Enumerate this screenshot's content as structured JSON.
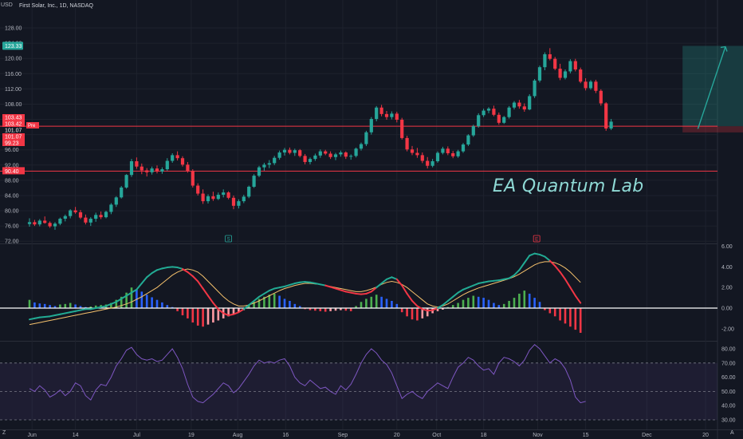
{
  "header": {
    "currency": "USD",
    "symbol_line": "First Solar, Inc., 1D, NASDAQ"
  },
  "watermark": "EA Quantum Lab",
  "price_panel": {
    "y_ticks": [
      "128.00",
      "124.00",
      "120.00",
      "116.00",
      "112.00",
      "108.00",
      "104.00",
      "100.00",
      "96.00",
      "92.00",
      "88.00",
      "84.00",
      "80.00",
      "76.00",
      "72.00"
    ],
    "current_price_label": "123.33",
    "label_stack": [
      "103.43",
      "103.42",
      "101.07",
      "101.07",
      "99.23"
    ],
    "pre_tag": "Pre",
    "support_label": "90.40",
    "horizontal_lines": [
      102.2,
      90.4
    ],
    "projection_box": {
      "x_from": 128,
      "x_to": 150,
      "top": 123.3,
      "bottom": 101.2,
      "mid": 102.2
    },
    "candles_ohlc": [
      [
        76.5,
        78.0,
        75.8,
        77.0
      ],
      [
        77.0,
        77.6,
        76.0,
        76.4
      ],
      [
        76.4,
        77.8,
        75.9,
        77.4
      ],
      [
        77.4,
        78.5,
        76.6,
        76.8
      ],
      [
        76.8,
        77.2,
        75.5,
        75.9
      ],
      [
        75.9,
        77.0,
        75.0,
        76.6
      ],
      [
        76.6,
        78.2,
        76.2,
        77.9
      ],
      [
        77.9,
        79.0,
        77.2,
        78.6
      ],
      [
        78.6,
        80.4,
        78.0,
        80.1
      ],
      [
        80.1,
        81.0,
        79.2,
        79.6
      ],
      [
        79.6,
        80.2,
        77.8,
        78.2
      ],
      [
        78.2,
        79.0,
        76.4,
        76.9
      ],
      [
        76.9,
        78.3,
        76.0,
        77.9
      ],
      [
        77.9,
        79.5,
        77.1,
        78.9
      ],
      [
        78.9,
        79.8,
        77.8,
        78.3
      ],
      [
        78.3,
        80.0,
        78.0,
        79.7
      ],
      [
        79.7,
        82.0,
        79.1,
        81.6
      ],
      [
        81.6,
        83.8,
        81.0,
        83.5
      ],
      [
        83.5,
        86.5,
        83.2,
        86.1
      ],
      [
        86.1,
        89.6,
        85.8,
        89.4
      ],
      [
        89.4,
        93.6,
        88.9,
        93.0
      ],
      [
        93.0,
        94.0,
        91.0,
        91.6
      ],
      [
        91.6,
        92.4,
        89.6,
        90.6
      ],
      [
        90.6,
        91.2,
        89.0,
        90.1
      ],
      [
        90.1,
        91.6,
        89.5,
        91.1
      ],
      [
        91.1,
        91.9,
        89.8,
        90.3
      ],
      [
        90.3,
        91.4,
        89.7,
        90.9
      ],
      [
        90.9,
        93.8,
        90.5,
        93.1
      ],
      [
        93.1,
        95.1,
        92.6,
        94.6
      ],
      [
        94.6,
        95.6,
        93.2,
        93.8
      ],
      [
        93.8,
        94.3,
        91.6,
        92.1
      ],
      [
        92.1,
        92.8,
        90.0,
        90.4
      ],
      [
        90.4,
        90.9,
        86.1,
        86.6
      ],
      [
        86.6,
        87.2,
        84.0,
        84.5
      ],
      [
        84.5,
        85.6,
        81.8,
        82.5
      ],
      [
        82.5,
        84.3,
        81.9,
        83.8
      ],
      [
        83.8,
        85.0,
        82.6,
        83.1
      ],
      [
        83.1,
        84.8,
        82.8,
        84.2
      ],
      [
        84.2,
        85.6,
        83.5,
        84.8
      ],
      [
        84.8,
        85.1,
        83.0,
        83.4
      ],
      [
        83.4,
        84.0,
        80.4,
        81.3
      ],
      [
        81.3,
        83.0,
        80.6,
        82.5
      ],
      [
        82.5,
        84.2,
        82.0,
        83.7
      ],
      [
        83.7,
        86.6,
        83.3,
        86.3
      ],
      [
        86.3,
        89.6,
        86.0,
        89.2
      ],
      [
        89.2,
        91.8,
        88.8,
        91.4
      ],
      [
        91.4,
        92.6,
        90.5,
        92.1
      ],
      [
        92.1,
        93.3,
        91.2,
        92.5
      ],
      [
        92.5,
        94.4,
        92.0,
        93.9
      ],
      [
        93.9,
        95.8,
        93.4,
        95.3
      ],
      [
        95.3,
        96.5,
        94.5,
        96.0
      ],
      [
        96.0,
        96.6,
        94.8,
        95.2
      ],
      [
        95.2,
        96.3,
        94.4,
        95.9
      ],
      [
        95.9,
        96.2,
        94.0,
        94.4
      ],
      [
        94.4,
        94.9,
        92.2,
        92.8
      ],
      [
        92.8,
        94.0,
        92.2,
        93.6
      ],
      [
        93.6,
        95.0,
        93.1,
        94.5
      ],
      [
        94.5,
        96.1,
        93.9,
        95.6
      ],
      [
        95.6,
        96.0,
        94.6,
        95.0
      ],
      [
        95.0,
        95.6,
        93.6,
        94.1
      ],
      [
        94.1,
        95.2,
        93.3,
        94.8
      ],
      [
        94.8,
        95.8,
        94.2,
        95.3
      ],
      [
        95.3,
        95.6,
        93.6,
        94.2
      ],
      [
        94.2,
        94.8,
        93.4,
        94.4
      ],
      [
        94.4,
        96.6,
        94.0,
        96.3
      ],
      [
        96.3,
        97.9,
        95.8,
        97.5
      ],
      [
        97.5,
        101.0,
        97.0,
        100.6
      ],
      [
        100.6,
        104.6,
        100.0,
        104.1
      ],
      [
        104.1,
        107.5,
        103.5,
        107.1
      ],
      [
        107.1,
        107.8,
        104.8,
        105.4
      ],
      [
        105.4,
        106.2,
        103.9,
        104.6
      ],
      [
        104.6,
        106.1,
        104.0,
        105.5
      ],
      [
        105.5,
        106.0,
        103.2,
        103.9
      ],
      [
        103.9,
        104.4,
        98.7,
        99.1
      ],
      [
        99.1,
        99.7,
        95.6,
        96.1
      ],
      [
        96.1,
        97.0,
        94.6,
        95.2
      ],
      [
        95.2,
        96.5,
        93.9,
        94.6
      ],
      [
        94.6,
        95.3,
        92.5,
        93.1
      ],
      [
        93.1,
        94.1,
        91.1,
        91.8
      ],
      [
        91.8,
        93.6,
        91.4,
        93.0
      ],
      [
        93.0,
        95.6,
        92.6,
        95.2
      ],
      [
        95.2,
        96.8,
        94.8,
        96.3
      ],
      [
        96.3,
        96.9,
        94.6,
        95.1
      ],
      [
        95.1,
        95.7,
        93.8,
        94.3
      ],
      [
        94.3,
        96.0,
        93.9,
        95.6
      ],
      [
        95.6,
        97.8,
        95.2,
        97.4
      ],
      [
        97.4,
        100.1,
        97.0,
        99.8
      ],
      [
        99.8,
        102.6,
        99.4,
        102.2
      ],
      [
        102.2,
        105.6,
        101.8,
        105.1
      ],
      [
        105.1,
        106.8,
        104.6,
        106.3
      ],
      [
        106.3,
        107.2,
        105.6,
        106.8
      ],
      [
        106.8,
        107.6,
        104.8,
        105.2
      ],
      [
        105.2,
        105.8,
        102.6,
        103.1
      ],
      [
        103.1,
        104.9,
        102.8,
        104.6
      ],
      [
        104.6,
        107.5,
        104.2,
        107.1
      ],
      [
        107.1,
        108.8,
        106.6,
        108.4
      ],
      [
        108.4,
        109.1,
        106.8,
        107.4
      ],
      [
        107.4,
        108.2,
        106.0,
        106.6
      ],
      [
        106.6,
        110.6,
        106.4,
        110.1
      ],
      [
        110.1,
        114.6,
        109.6,
        114.2
      ],
      [
        114.2,
        118.1,
        113.7,
        117.7
      ],
      [
        117.7,
        121.6,
        116.9,
        121.1
      ],
      [
        121.1,
        122.7,
        119.5,
        119.9
      ],
      [
        119.9,
        120.4,
        116.9,
        117.3
      ],
      [
        117.3,
        118.6,
        114.3,
        114.9
      ],
      [
        114.9,
        117.1,
        114.5,
        116.6
      ],
      [
        116.6,
        119.8,
        116.1,
        119.3
      ],
      [
        119.3,
        119.9,
        116.6,
        117.1
      ],
      [
        117.1,
        117.6,
        113.5,
        113.9
      ],
      [
        113.9,
        114.8,
        111.6,
        112.2
      ],
      [
        112.2,
        114.3,
        111.8,
        113.9
      ],
      [
        113.9,
        114.4,
        110.9,
        111.5
      ],
      [
        111.5,
        111.9,
        107.6,
        108.2
      ],
      [
        108.2,
        108.5,
        101.0,
        101.6
      ],
      [
        101.6,
        104.1,
        101.2,
        103.4
      ]
    ]
  },
  "x_axis": {
    "ticks": [
      {
        "label": "Jun",
        "i": 0.5
      },
      {
        "label": "14",
        "i": 9
      },
      {
        "label": "Jul",
        "i": 21
      },
      {
        "label": "19",
        "i": 31.7
      },
      {
        "label": "Aug",
        "i": 40.8
      },
      {
        "label": "16",
        "i": 50.2
      },
      {
        "label": "Sep",
        "i": 61.4
      },
      {
        "label": "20",
        "i": 72
      },
      {
        "label": "Oct",
        "i": 79.8
      },
      {
        "label": "18",
        "i": 89
      },
      {
        "label": "Nov",
        "i": 99.6
      },
      {
        "label": "15",
        "i": 109
      },
      {
        "label": "Dec",
        "i": 121
      },
      {
        "label": "20",
        "i": 132.5
      },
      {
        "label": "20",
        "i": 143.5
      }
    ]
  },
  "event_markers": [
    {
      "label": "S",
      "i": 39,
      "color": "#26a69a"
    },
    {
      "label": "E",
      "i": 99.4,
      "color": "#f23645"
    }
  ],
  "macd_panel": {
    "y_ticks": [
      "6.00",
      "4.00",
      "2.00",
      "0.00",
      "-2.00"
    ],
    "colors": {
      "hist_up": "#4caf50",
      "hist_up_light": "#26a69a",
      "hist_down": "#f23645",
      "hist_blue": "#2962ff",
      "macd_up": "#22ab94",
      "macd_down": "#f23645",
      "signal": "#f5c16c",
      "zero": "#ffffff"
    },
    "histogram": [
      0.8,
      0.55,
      0.45,
      0.4,
      0.3,
      0.2,
      0.35,
      0.4,
      0.5,
      0.35,
      0.2,
      0.1,
      0.15,
      0.25,
      0.3,
      0.35,
      0.5,
      0.8,
      1.1,
      1.5,
      2.0,
      1.8,
      1.6,
      1.3,
      1.05,
      0.8,
      0.55,
      0.3,
      0.1,
      -0.3,
      -0.7,
      -1.0,
      -1.4,
      -1.7,
      -1.8,
      -1.6,
      -1.4,
      -1.2,
      -1.0,
      -0.8,
      -0.6,
      -0.4,
      -0.2,
      0.3,
      0.6,
      0.9,
      1.1,
      1.3,
      1.4,
      1.2,
      0.9,
      0.7,
      0.4,
      0.2,
      -0.1,
      -0.2,
      -0.25,
      -0.3,
      -0.35,
      -0.3,
      -0.25,
      -0.2,
      -0.25,
      -0.3,
      0.2,
      0.6,
      0.9,
      1.1,
      1.3,
      1.1,
      0.9,
      0.7,
      0.4,
      -0.4,
      -0.8,
      -1.1,
      -1.2,
      -1.0,
      -0.8,
      -0.5,
      -0.3,
      -0.15,
      0.1,
      0.3,
      0.5,
      0.8,
      1.0,
      1.2,
      1.1,
      1.0,
      0.8,
      0.5,
      0.3,
      0.4,
      0.7,
      1.0,
      1.4,
      1.7,
      1.4,
      1.0,
      0.6,
      -0.2,
      -0.5,
      -0.8,
      -1.2,
      -1.5,
      -1.8,
      -2.1,
      -2.4
    ],
    "macd": [
      -1.1,
      -1.0,
      -0.9,
      -0.85,
      -0.8,
      -0.7,
      -0.6,
      -0.5,
      -0.4,
      -0.3,
      -0.2,
      -0.1,
      -0.1,
      0.0,
      0.1,
      0.2,
      0.4,
      0.6,
      0.9,
      1.2,
      1.5,
      1.8,
      2.4,
      3.0,
      3.4,
      3.7,
      3.85,
      3.95,
      4.0,
      3.95,
      3.8,
      3.5,
      3.1,
      2.6,
      1.9,
      1.2,
      0.5,
      -0.1,
      -0.5,
      -0.7,
      -0.6,
      -0.4,
      -0.1,
      0.3,
      0.7,
      1.1,
      1.4,
      1.7,
      1.9,
      2.0,
      2.1,
      2.25,
      2.4,
      2.5,
      2.55,
      2.5,
      2.4,
      2.3,
      2.2,
      2.05,
      1.9,
      1.75,
      1.6,
      1.5,
      1.4,
      1.35,
      1.4,
      1.6,
      2.0,
      2.4,
      2.8,
      3.0,
      2.8,
      2.2,
      1.4,
      0.7,
      0.2,
      -0.1,
      -0.25,
      -0.2,
      0.0,
      0.3,
      0.7,
      1.1,
      1.5,
      1.8,
      2.0,
      2.2,
      2.4,
      2.5,
      2.6,
      2.65,
      2.7,
      2.8,
      2.9,
      3.2,
      3.7,
      4.4,
      5.1,
      5.3,
      5.2,
      5.0,
      4.6,
      4.1,
      3.5,
      2.8,
      2.0,
      1.2,
      0.5
    ],
    "signal": [
      -1.6,
      -1.5,
      -1.4,
      -1.3,
      -1.2,
      -1.1,
      -1.0,
      -0.9,
      -0.8,
      -0.7,
      -0.6,
      -0.5,
      -0.4,
      -0.3,
      -0.2,
      -0.1,
      0.0,
      0.1,
      0.25,
      0.4,
      0.6,
      0.85,
      1.1,
      1.4,
      1.7,
      2.0,
      2.4,
      2.8,
      3.2,
      3.5,
      3.7,
      3.8,
      3.7,
      3.5,
      3.1,
      2.6,
      2.1,
      1.6,
      1.1,
      0.7,
      0.4,
      0.2,
      0.2,
      0.3,
      0.5,
      0.7,
      0.95,
      1.2,
      1.45,
      1.7,
      1.9,
      2.05,
      2.2,
      2.3,
      2.4,
      2.4,
      2.35,
      2.3,
      2.2,
      2.1,
      2.0,
      1.9,
      1.8,
      1.7,
      1.6,
      1.6,
      1.7,
      1.85,
      2.05,
      2.3,
      2.5,
      2.6,
      2.5,
      2.3,
      2.0,
      1.6,
      1.2,
      0.8,
      0.4,
      0.2,
      0.1,
      0.2,
      0.4,
      0.7,
      1.0,
      1.3,
      1.55,
      1.75,
      1.95,
      2.1,
      2.25,
      2.4,
      2.55,
      2.7,
      2.85,
      3.05,
      3.3,
      3.6,
      3.9,
      4.2,
      4.4,
      4.5,
      4.5,
      4.4,
      4.2,
      3.9,
      3.5,
      3.0,
      2.5
    ]
  },
  "rsi_panel": {
    "y_ticks": [
      "80.00",
      "70.00",
      "60.00",
      "50.00",
      "40.00",
      "30.00"
    ],
    "upper_band": 70,
    "lower_band": 30,
    "middle": 50,
    "values": [
      52,
      50,
      54,
      51,
      46,
      48,
      51,
      47,
      50,
      56,
      54,
      47,
      44,
      51,
      55,
      54,
      60,
      68,
      73,
      79,
      81,
      76,
      73,
      72,
      73,
      71,
      72,
      76,
      80,
      74,
      66,
      55,
      46,
      43,
      42,
      45,
      48,
      52,
      56,
      54,
      49,
      52,
      57,
      62,
      68,
      72,
      70,
      71,
      70,
      72,
      73,
      68,
      60,
      56,
      54,
      58,
      55,
      52,
      53,
      50,
      48,
      54,
      51,
      55,
      62,
      70,
      76,
      80,
      77,
      72,
      69,
      63,
      54,
      45,
      48,
      50,
      47,
      45,
      50,
      53,
      56,
      54,
      52,
      60,
      67,
      70,
      74,
      72,
      68,
      65,
      66,
      62,
      70,
      74,
      73,
      71,
      68,
      72,
      79,
      83,
      80,
      75,
      70,
      73,
      71,
      66,
      58,
      46,
      42,
      43
    ]
  },
  "corner": {
    "bottom_left": "Z",
    "bottom_right": "A"
  }
}
